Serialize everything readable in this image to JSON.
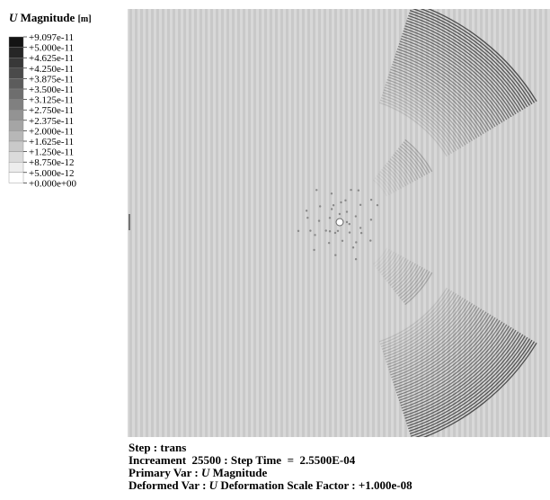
{
  "legend": {
    "title": {
      "var": "U",
      "name": "Magnitude",
      "unit": "[m]"
    },
    "labels": [
      "+9.097e-11",
      "+5.000e-11",
      "+4.625e-11",
      "+4.250e-11",
      "+3.875e-11",
      "+3.500e-11",
      "+3.125e-11",
      "+2.750e-11",
      "+2.375e-11",
      "+2.000e-11",
      "+1.625e-11",
      "+1.250e-11",
      "+8.750e-12",
      "+5.000e-12",
      "+0.000e+00"
    ]
  },
  "footer": [
    [
      {
        "text": "Step : trans"
      }
    ],
    [
      {
        "text": "Increament  25500 : Step Time  =  2.5500E-04"
      }
    ],
    [
      {
        "text": "Primary Var : "
      },
      {
        "text": "U",
        "italic": true
      },
      {
        "text": " Magnitude"
      }
    ],
    [
      {
        "text": "Deformed Var : "
      },
      {
        "text": "U",
        "italic": true
      },
      {
        "text": " Deformation Scale Factor : +1.000e-08"
      }
    ]
  ]
}
